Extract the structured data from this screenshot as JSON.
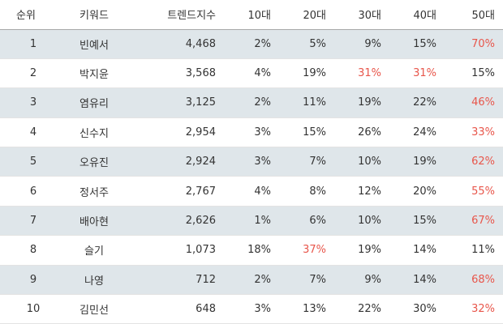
{
  "table": {
    "headers": [
      "순위",
      "키워드",
      "트렌드지수",
      "10대",
      "20대",
      "30대",
      "40대",
      "50대"
    ],
    "rows": [
      {
        "rank": "1",
        "keyword": "빈예서",
        "trend": "4,468",
        "age10": "2%",
        "age20": "5%",
        "age30": "9%",
        "age40": "15%",
        "age50": "70%",
        "highlight": [
          "age50"
        ]
      },
      {
        "rank": "2",
        "keyword": "박지윤",
        "trend": "3,568",
        "age10": "4%",
        "age20": "19%",
        "age30": "31%",
        "age40": "31%",
        "age50": "15%",
        "highlight": [
          "age30",
          "age40"
        ]
      },
      {
        "rank": "3",
        "keyword": "염유리",
        "trend": "3,125",
        "age10": "2%",
        "age20": "11%",
        "age30": "19%",
        "age40": "22%",
        "age50": "46%",
        "highlight": [
          "age50"
        ]
      },
      {
        "rank": "4",
        "keyword": "신수지",
        "trend": "2,954",
        "age10": "3%",
        "age20": "15%",
        "age30": "26%",
        "age40": "24%",
        "age50": "33%",
        "highlight": [
          "age50"
        ]
      },
      {
        "rank": "5",
        "keyword": "오유진",
        "trend": "2,924",
        "age10": "3%",
        "age20": "7%",
        "age30": "10%",
        "age40": "19%",
        "age50": "62%",
        "highlight": [
          "age50"
        ]
      },
      {
        "rank": "6",
        "keyword": "정서주",
        "trend": "2,767",
        "age10": "4%",
        "age20": "8%",
        "age30": "12%",
        "age40": "20%",
        "age50": "55%",
        "highlight": [
          "age50"
        ]
      },
      {
        "rank": "7",
        "keyword": "배아현",
        "trend": "2,626",
        "age10": "1%",
        "age20": "6%",
        "age30": "10%",
        "age40": "15%",
        "age50": "67%",
        "highlight": [
          "age50"
        ]
      },
      {
        "rank": "8",
        "keyword": "슬기",
        "trend": "1,073",
        "age10": "18%",
        "age20": "37%",
        "age30": "19%",
        "age40": "14%",
        "age50": "11%",
        "highlight": [
          "age20"
        ]
      },
      {
        "rank": "9",
        "keyword": "나영",
        "trend": "712",
        "age10": "2%",
        "age20": "7%",
        "age30": "9%",
        "age40": "14%",
        "age50": "68%",
        "highlight": [
          "age50"
        ]
      },
      {
        "rank": "10",
        "keyword": "김민선",
        "trend": "648",
        "age10": "3%",
        "age20": "13%",
        "age30": "22%",
        "age40": "30%",
        "age50": "32%",
        "highlight": [
          "age50"
        ]
      }
    ]
  },
  "colors": {
    "highlight": "#e8564b",
    "row_shade": "#dfe6ea",
    "text": "#333333"
  }
}
